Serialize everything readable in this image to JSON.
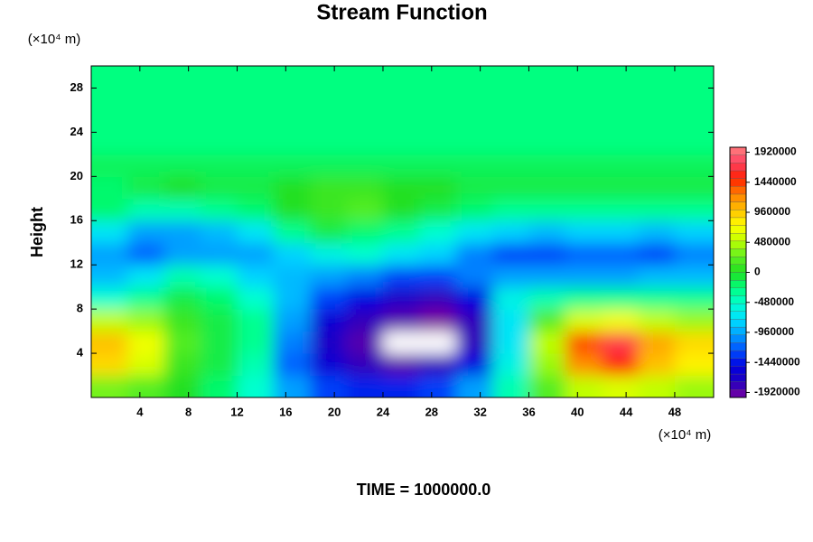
{
  "chart_data": {
    "type": "contour",
    "title": "Stream Function",
    "ylabel": "Height",
    "y_unit": "(×10⁴ m)",
    "x_unit": "(×10⁴ m)",
    "footer": "TIME = 1000000.0",
    "xlim": [
      0,
      51.2
    ],
    "ylim": [
      0,
      30
    ],
    "xticks": [
      4,
      8,
      12,
      16,
      20,
      24,
      28,
      32,
      36,
      40,
      44,
      48
    ],
    "yticks": [
      4,
      8,
      12,
      16,
      20,
      24,
      28
    ],
    "zlim": [
      -2000000,
      2000000
    ],
    "zticks": [
      -1920000,
      -1440000,
      -960000,
      -480000,
      0,
      480000,
      960000,
      1440000,
      1920000
    ],
    "colormap": [
      "#7a00a0",
      "#2000c0",
      "#0000e0",
      "#0050ff",
      "#00a0ff",
      "#00e0ff",
      "#00ffd0",
      "#00ff80",
      "#20e020",
      "#60f020",
      "#c0ff00",
      "#ffff00",
      "#ffc000",
      "#ff8000",
      "#ff2000",
      "#ff4060",
      "#ff8080"
    ],
    "below_color": "#ffffff",
    "x": [
      1.5,
      4.5,
      7.5,
      10.5,
      13.5,
      16.5,
      19.5,
      22.5,
      25.5,
      28.5,
      31.5,
      34.5,
      37.5,
      40.5,
      43.5,
      46.5,
      49.5
    ],
    "y": [
      1,
      3,
      5,
      7,
      9,
      11,
      13,
      15,
      17,
      19,
      21,
      23,
      25,
      27,
      29
    ],
    "z": [
      [
        300000,
        200000,
        0,
        -200000,
        -500000,
        -1000000,
        -1300000,
        -1400000,
        -1400000,
        -1300000,
        -1000000,
        -400000,
        200000,
        500000,
        600000,
        500000,
        400000
      ],
      [
        900000,
        600000,
        100000,
        -100000,
        -400000,
        -1200000,
        -1600000,
        -1800000,
        -1900000,
        -1800000,
        -1500000,
        -600000,
        400000,
        1200000,
        1500000,
        1000000,
        800000
      ],
      [
        1000000,
        700000,
        200000,
        -100000,
        -300000,
        -1100000,
        -1700000,
        -1900000,
        -2200000,
        -2200000,
        -1800000,
        -700000,
        500000,
        1400000,
        1700000,
        1100000,
        900000
      ],
      [
        500000,
        400000,
        100000,
        -100000,
        -300000,
        -1000000,
        -1600000,
        -1800000,
        -1900000,
        -2000000,
        -1800000,
        -700000,
        200000,
        600000,
        700000,
        500000,
        400000
      ],
      [
        -500000,
        -300000,
        -100000,
        -200000,
        -500000,
        -900000,
        -1300000,
        -1500000,
        -1700000,
        -1800000,
        -1500000,
        -600000,
        -400000,
        -300000,
        -300000,
        -300000,
        -300000
      ],
      [
        -900000,
        -700000,
        -400000,
        -500000,
        -800000,
        -900000,
        -1000000,
        -1100000,
        -1300000,
        -1300000,
        -1100000,
        -1000000,
        -1000000,
        -1000000,
        -1000000,
        -900000,
        -900000
      ],
      [
        -1000000,
        -1200000,
        -1000000,
        -1000000,
        -1000000,
        -800000,
        -600000,
        -500000,
        -700000,
        -800000,
        -1100000,
        -1300000,
        -1300000,
        -1200000,
        -1200000,
        -1300000,
        -1100000
      ],
      [
        -700000,
        -1000000,
        -1000000,
        -900000,
        -700000,
        -300000,
        -100000,
        -200000,
        -300000,
        -500000,
        -700000,
        -800000,
        -900000,
        -800000,
        -800000,
        -900000,
        -800000
      ],
      [
        -200000,
        -400000,
        -400000,
        -300000,
        -200000,
        0,
        100000,
        200000,
        0,
        -100000,
        -200000,
        -300000,
        -300000,
        -300000,
        -300000,
        -300000,
        -300000
      ],
      [
        -200000,
        -100000,
        0,
        -100000,
        -100000,
        0,
        100000,
        100000,
        0,
        0,
        -100000,
        -100000,
        -100000,
        -100000,
        -100000,
        -100000,
        -100000
      ],
      [
        -150000,
        -150000,
        -150000,
        -150000,
        -150000,
        -150000,
        -150000,
        -150000,
        -150000,
        -150000,
        -150000,
        -150000,
        -150000,
        -150000,
        -150000,
        -150000,
        -150000
      ],
      [
        -250000,
        -250000,
        -250000,
        -250000,
        -250000,
        -250000,
        -250000,
        -250000,
        -250000,
        -250000,
        -250000,
        -250000,
        -250000,
        -250000,
        -250000,
        -250000,
        -250000
      ],
      [
        -250000,
        -250000,
        -250000,
        -250000,
        -250000,
        -250000,
        -250000,
        -250000,
        -250000,
        -250000,
        -250000,
        -250000,
        -250000,
        -250000,
        -250000,
        -250000,
        -250000
      ],
      [
        -250000,
        -250000,
        -250000,
        -250000,
        -250000,
        -250000,
        -250000,
        -250000,
        -250000,
        -250000,
        -250000,
        -250000,
        -250000,
        -250000,
        -250000,
        -250000,
        -250000
      ],
      [
        -250000,
        -250000,
        -250000,
        -250000,
        -250000,
        -250000,
        -250000,
        -250000,
        -250000,
        -250000,
        -250000,
        -250000,
        -250000,
        -250000,
        -250000,
        -250000,
        -250000
      ]
    ]
  }
}
